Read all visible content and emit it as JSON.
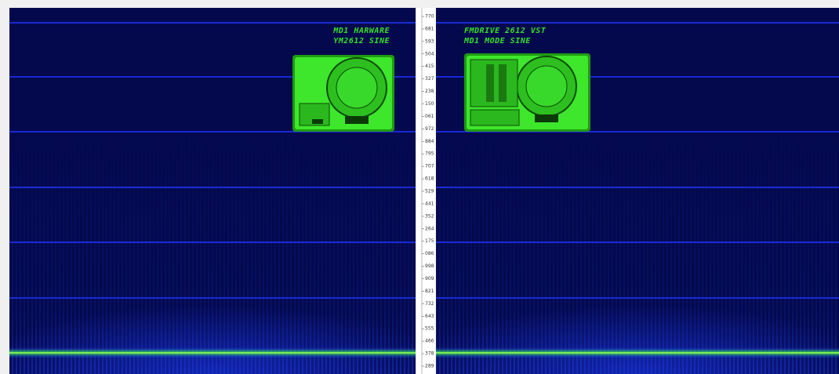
{
  "left_panel": {
    "title_lines": [
      "MD1 HARWARE",
      "YM2612 SINE"
    ]
  },
  "right_panel": {
    "title_lines": [
      "FMDRIVE 2612 VST",
      "MD1 MODE SINE"
    ]
  },
  "scale": {
    "labels": [
      "770",
      "681",
      "593",
      "504",
      "415",
      "327",
      "238",
      "150",
      "061",
      "972",
      "884",
      "795",
      "707",
      "618",
      "529",
      "441",
      "352",
      "264",
      "175",
      "086",
      "998",
      "909",
      "821",
      "732",
      "643",
      "555",
      "466",
      "378",
      "289"
    ]
  }
}
